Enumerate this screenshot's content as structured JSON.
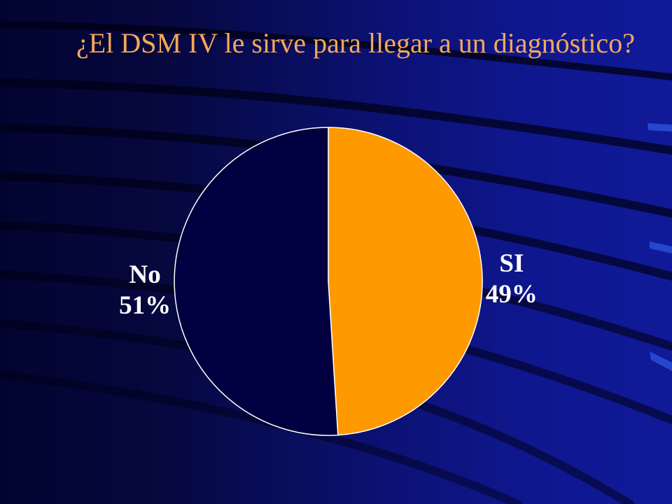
{
  "slide": {
    "title": "¿El DSM IV le sirve para llegar a un diagnóstico?"
  },
  "colors": {
    "title": "#f4a85a",
    "si_slice": "#ff9900",
    "no_slice": "#000040",
    "slice_outline": "#ffffff",
    "label": "#ffffff"
  },
  "chart_data": {
    "type": "pie",
    "title": "¿El DSM IV le sirve para llegar a un diagnóstico?",
    "slices": [
      {
        "label": "SI",
        "value": 49,
        "display": "49%",
        "color": "#ff9900"
      },
      {
        "label": "No",
        "value": 51,
        "display": "51%",
        "color": "#000040"
      }
    ],
    "start_angle": "12 o'clock",
    "direction": "clockwise",
    "legend": "none"
  }
}
